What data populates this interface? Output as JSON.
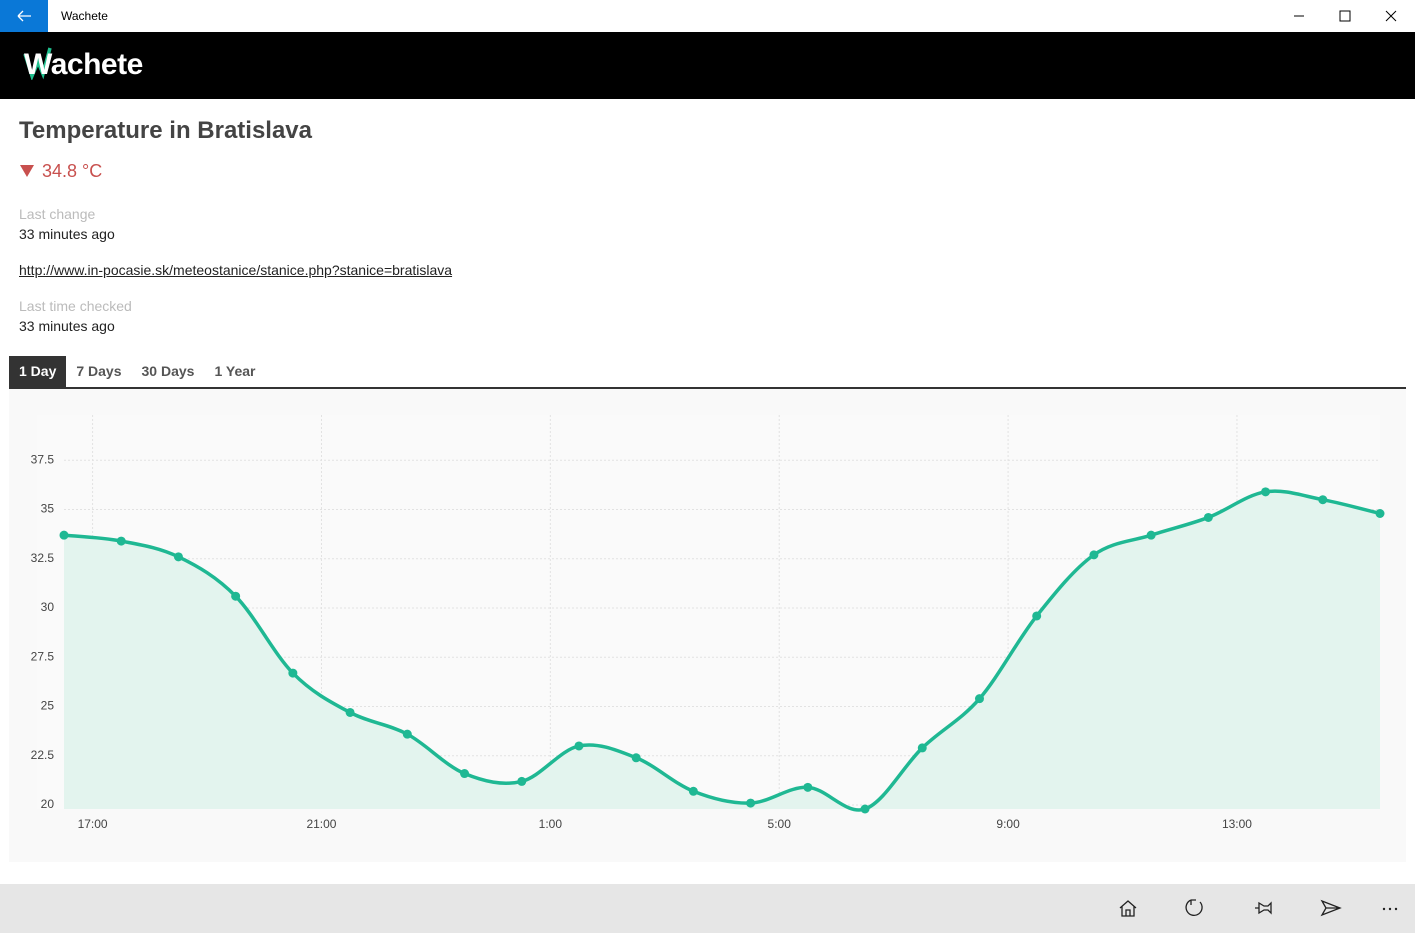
{
  "window": {
    "title": "Wachete"
  },
  "header": {
    "logo": "Wachete"
  },
  "monitor": {
    "title": "Temperature in Bratislava",
    "value": "34.8 °C",
    "last_change_label": "Last change",
    "last_change": "33 minutes ago",
    "url": "http://www.in-pocasie.sk/meteostanice/stanice.php?stanice=bratislava",
    "last_checked_label": "Last time checked",
    "last_checked": "33 minutes ago"
  },
  "tabs": [
    "1 Day",
    "7 Days",
    "30 Days",
    "1 Year"
  ],
  "chart_data": {
    "type": "line",
    "color": "#1fb893",
    "area_color": "#e3f4ee",
    "x": [
      16.5,
      17.5,
      18.5,
      19.5,
      20.5,
      21.5,
      22.5,
      23.5,
      24.5,
      25.5,
      26.5,
      27.5,
      28.5,
      29.5,
      30.5,
      31.5,
      32.5,
      33.5,
      34.5,
      35.5,
      36.5,
      37.5,
      38.5,
      39.5
    ],
    "values": [
      33.7,
      33.4,
      32.6,
      30.6,
      26.7,
      24.7,
      23.6,
      21.6,
      21.2,
      23.0,
      22.4,
      20.7,
      20.1,
      20.9,
      19.8,
      22.9,
      25.4,
      29.6,
      32.7,
      33.7,
      34.6,
      35.9,
      35.5,
      34.8
    ],
    "xlim": [
      16.5,
      39.5
    ],
    "ylim": [
      19.8,
      39.8
    ],
    "xticks": [
      {
        "value": 17,
        "label": "17:00"
      },
      {
        "value": 21,
        "label": "21:00"
      },
      {
        "value": 25,
        "label": "1:00"
      },
      {
        "value": 29,
        "label": "5:00"
      },
      {
        "value": 33,
        "label": "9:00"
      },
      {
        "value": 37,
        "label": "13:00"
      }
    ],
    "yticks": [
      20,
      22.5,
      25,
      27.5,
      30,
      32.5,
      35,
      37.5
    ],
    "grid": true
  }
}
